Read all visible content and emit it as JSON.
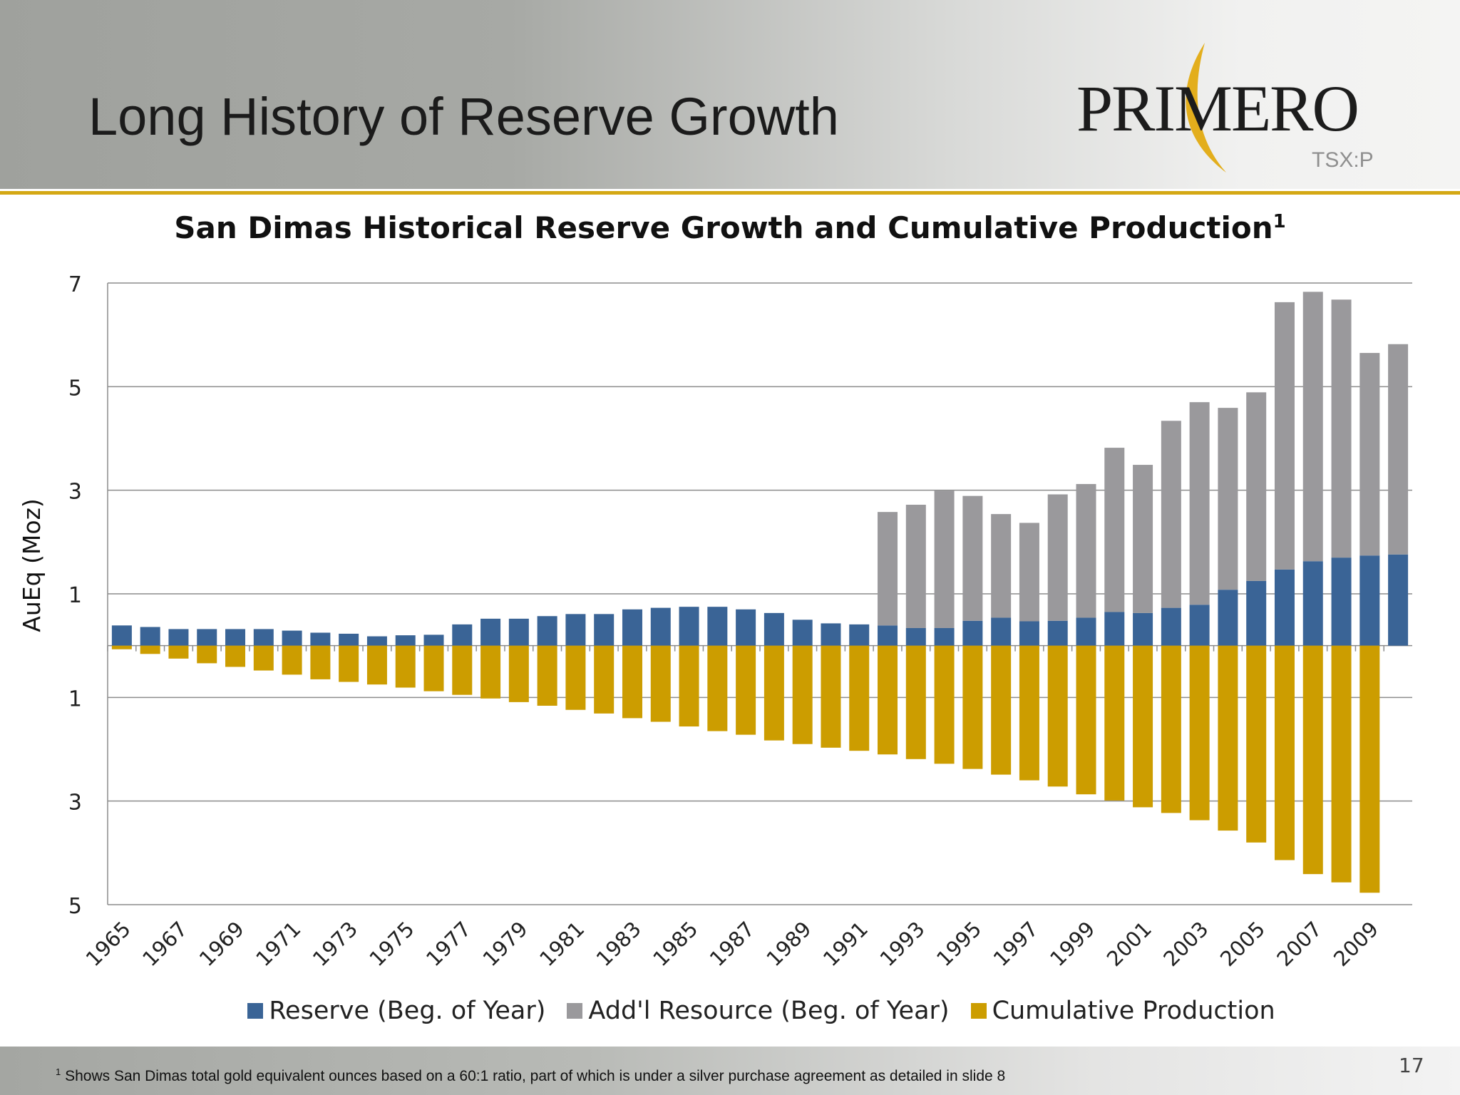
{
  "slide": {
    "title": "Long History of Reserve Growth",
    "page_number": "17",
    "footnote_marker": "1",
    "footnote": "Shows San Dimas total gold equivalent ounces based on a 60:1 ratio, part of which is under a silver purchase agreement as detailed in slide 8"
  },
  "logo": {
    "word": "PRIMERO",
    "ticker": "TSX:P"
  },
  "colors": {
    "reserve": "#3a6496",
    "resource": "#9a999c",
    "production": "#cc9d00",
    "accent": "#d4a814"
  },
  "chart_data": {
    "type": "bar",
    "stacked": true,
    "title": "San Dimas Historical Reserve Growth and Cumulative Production",
    "title_superscript": "1",
    "ylabel": "AuEq (Moz)",
    "xlabel": "",
    "ylim": [
      -5,
      7
    ],
    "yticks": [
      7,
      5,
      3,
      1,
      -1,
      -3,
      -5
    ],
    "ytick_labels": [
      "7",
      "5",
      "3",
      "1",
      "1",
      "3",
      "5"
    ],
    "grid": true,
    "legend_position": "bottom",
    "categories": [
      1965,
      1966,
      1967,
      1968,
      1969,
      1970,
      1971,
      1972,
      1973,
      1974,
      1975,
      1976,
      1977,
      1978,
      1979,
      1980,
      1981,
      1982,
      1983,
      1984,
      1985,
      1986,
      1987,
      1988,
      1989,
      1990,
      1991,
      1992,
      1993,
      1994,
      1995,
      1996,
      1997,
      1998,
      1999,
      2000,
      2001,
      2002,
      2003,
      2004,
      2005,
      2006,
      2007,
      2008,
      2009,
      2010
    ],
    "xtick_labels": [
      "1965",
      "1967",
      "1969",
      "1971",
      "1973",
      "1975",
      "1977",
      "1979",
      "1981",
      "1983",
      "1985",
      "1987",
      "1989",
      "1991",
      "1993",
      "1995",
      "1997",
      "1999",
      "2001",
      "2003",
      "2005",
      "2007",
      "2009"
    ],
    "series": [
      {
        "name": "Reserve (Beg. of Year)",
        "values": [
          0.39,
          0.36,
          0.32,
          0.32,
          0.32,
          0.32,
          0.29,
          0.25,
          0.23,
          0.18,
          0.2,
          0.21,
          0.41,
          0.52,
          0.52,
          0.57,
          0.61,
          0.61,
          0.7,
          0.73,
          0.75,
          0.75,
          0.7,
          0.63,
          0.5,
          0.43,
          0.41,
          0.39,
          0.34,
          0.34,
          0.48,
          0.54,
          0.47,
          0.48,
          0.54,
          0.65,
          0.63,
          0.73,
          0.79,
          1.08,
          1.25,
          1.47,
          1.63,
          1.7,
          1.74,
          1.76
        ]
      },
      {
        "name": "Add'l Resource (Beg. of Year)",
        "values": [
          0,
          0,
          0,
          0,
          0,
          0,
          0,
          0,
          0,
          0,
          0,
          0,
          0,
          0,
          0,
          0,
          0,
          0,
          0,
          0,
          0,
          0,
          0,
          0,
          0,
          0,
          0,
          2.19,
          2.38,
          2.65,
          2.41,
          2.0,
          1.9,
          2.44,
          2.58,
          3.17,
          2.86,
          3.61,
          3.91,
          3.51,
          3.64,
          5.16,
          5.2,
          4.98,
          3.91,
          4.06
        ]
      },
      {
        "name": "Cumulative Production",
        "values": [
          -0.07,
          -0.16,
          -0.25,
          -0.34,
          -0.41,
          -0.48,
          -0.56,
          -0.65,
          -0.7,
          -0.75,
          -0.81,
          -0.88,
          -0.95,
          -1.02,
          -1.09,
          -1.16,
          -1.24,
          -1.31,
          -1.4,
          -1.47,
          -1.56,
          -1.65,
          -1.72,
          -1.83,
          -1.9,
          -1.97,
          -2.03,
          -2.1,
          -2.19,
          -2.28,
          -2.38,
          -2.49,
          -2.6,
          -2.72,
          -2.87,
          -2.99,
          -3.12,
          -3.23,
          -3.37,
          -3.57,
          -3.8,
          -4.14,
          -4.41,
          -4.57,
          -4.77,
          0
        ]
      }
    ]
  }
}
